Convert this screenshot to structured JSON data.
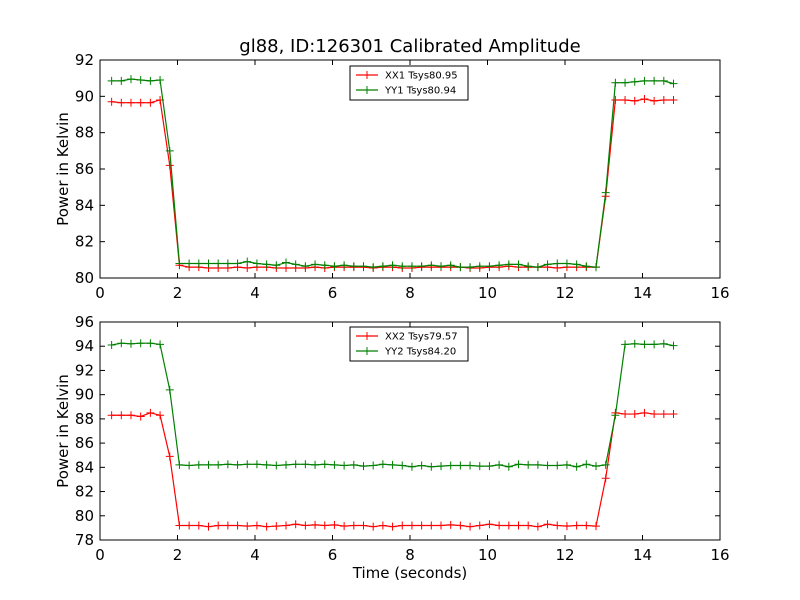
{
  "chart_data": [
    {
      "type": "line",
      "title": "gl88, ID:126301 Calibrated Amplitude",
      "xlabel": "",
      "ylabel": "Power in Kelvin",
      "xlim": [
        0,
        16
      ],
      "ylim": [
        80,
        92
      ],
      "xticks": [
        0,
        2,
        4,
        6,
        8,
        10,
        12,
        14,
        16
      ],
      "yticks": [
        80,
        82,
        84,
        86,
        88,
        90,
        92
      ],
      "legend_position": "top-center",
      "x": [
        0.3,
        0.55,
        0.8,
        1.05,
        1.3,
        1.55,
        1.8,
        2.05,
        2.3,
        2.55,
        2.8,
        3.05,
        3.3,
        3.55,
        3.8,
        4.05,
        4.3,
        4.55,
        4.8,
        5.05,
        5.3,
        5.55,
        5.8,
        6.05,
        6.3,
        6.55,
        6.8,
        7.05,
        7.3,
        7.55,
        7.8,
        8.05,
        8.3,
        8.55,
        8.8,
        9.05,
        9.3,
        9.55,
        9.8,
        10.05,
        10.3,
        10.55,
        10.8,
        11.05,
        11.3,
        11.55,
        11.8,
        12.05,
        12.3,
        12.55,
        12.8,
        13.05,
        13.3,
        13.55,
        13.8,
        14.05,
        14.3,
        14.55,
        14.8
      ],
      "series": [
        {
          "name": "XX1 Tsys80.95",
          "color": "#ff0000",
          "values": [
            89.7,
            89.65,
            89.65,
            89.65,
            89.65,
            89.8,
            86.2,
            80.7,
            80.6,
            80.6,
            80.55,
            80.55,
            80.55,
            80.6,
            80.55,
            80.6,
            80.6,
            80.55,
            80.55,
            80.55,
            80.55,
            80.6,
            80.55,
            80.6,
            80.6,
            80.6,
            80.6,
            80.55,
            80.6,
            80.6,
            80.55,
            80.55,
            80.6,
            80.6,
            80.6,
            80.6,
            80.6,
            80.55,
            80.55,
            80.6,
            80.6,
            80.65,
            80.6,
            80.6,
            80.6,
            80.6,
            80.55,
            80.6,
            80.6,
            80.6,
            80.6,
            84.5,
            89.8,
            89.8,
            89.75,
            89.85,
            89.75,
            89.8,
            89.8
          ]
        },
        {
          "name": "YY1 Tsys80.94",
          "color": "#008000",
          "values": [
            90.85,
            90.85,
            90.95,
            90.9,
            90.85,
            90.9,
            87.0,
            80.8,
            80.8,
            80.8,
            80.8,
            80.8,
            80.8,
            80.8,
            80.9,
            80.8,
            80.75,
            80.7,
            80.85,
            80.75,
            80.65,
            80.75,
            80.7,
            80.65,
            80.7,
            80.65,
            80.65,
            80.6,
            80.65,
            80.7,
            80.65,
            80.65,
            80.65,
            80.7,
            80.65,
            80.7,
            80.6,
            80.6,
            80.65,
            80.65,
            80.7,
            80.75,
            80.75,
            80.65,
            80.6,
            80.75,
            80.8,
            80.8,
            80.75,
            80.65,
            80.6,
            84.7,
            90.75,
            90.75,
            90.8,
            90.85,
            90.85,
            90.85,
            90.7
          ]
        }
      ]
    },
    {
      "type": "line",
      "title": "",
      "xlabel": "Time (seconds)",
      "ylabel": "Power in Kelvin",
      "xlim": [
        0,
        16
      ],
      "ylim": [
        78,
        96
      ],
      "xticks": [
        0,
        2,
        4,
        6,
        8,
        10,
        12,
        14,
        16
      ],
      "yticks": [
        78,
        80,
        82,
        84,
        86,
        88,
        90,
        92,
        94,
        96
      ],
      "legend_position": "top-center",
      "x": [
        0.3,
        0.55,
        0.8,
        1.05,
        1.3,
        1.55,
        1.8,
        2.05,
        2.3,
        2.55,
        2.8,
        3.05,
        3.3,
        3.55,
        3.8,
        4.05,
        4.3,
        4.55,
        4.8,
        5.05,
        5.3,
        5.55,
        5.8,
        6.05,
        6.3,
        6.55,
        6.8,
        7.05,
        7.3,
        7.55,
        7.8,
        8.05,
        8.3,
        8.55,
        8.8,
        9.05,
        9.3,
        9.55,
        9.8,
        10.05,
        10.3,
        10.55,
        10.8,
        11.05,
        11.3,
        11.55,
        11.8,
        12.05,
        12.3,
        12.55,
        12.8,
        13.05,
        13.3,
        13.55,
        13.8,
        14.05,
        14.3,
        14.55,
        14.8
      ],
      "series": [
        {
          "name": "XX2 Tsys79.57",
          "color": "#ff0000",
          "values": [
            88.3,
            88.3,
            88.3,
            88.2,
            88.5,
            88.3,
            84.9,
            79.2,
            79.2,
            79.2,
            79.1,
            79.2,
            79.2,
            79.2,
            79.15,
            79.2,
            79.1,
            79.15,
            79.2,
            79.3,
            79.2,
            79.25,
            79.2,
            79.25,
            79.15,
            79.2,
            79.2,
            79.1,
            79.2,
            79.1,
            79.2,
            79.2,
            79.2,
            79.2,
            79.2,
            79.25,
            79.2,
            79.1,
            79.2,
            79.3,
            79.2,
            79.2,
            79.2,
            79.2,
            79.1,
            79.3,
            79.2,
            79.15,
            79.2,
            79.2,
            79.15,
            83.1,
            88.5,
            88.4,
            88.4,
            88.5,
            88.4,
            88.4,
            88.4
          ]
        },
        {
          "name": "YY2 Tsys84.20",
          "color": "#008000",
          "values": [
            94.1,
            94.25,
            94.2,
            94.25,
            94.25,
            94.15,
            90.4,
            84.2,
            84.15,
            84.2,
            84.2,
            84.2,
            84.25,
            84.2,
            84.25,
            84.25,
            84.2,
            84.15,
            84.2,
            84.25,
            84.25,
            84.2,
            84.25,
            84.2,
            84.15,
            84.2,
            84.1,
            84.15,
            84.25,
            84.2,
            84.15,
            84.05,
            84.15,
            84.05,
            84.1,
            84.15,
            84.15,
            84.15,
            84.1,
            84.1,
            84.2,
            84.05,
            84.25,
            84.2,
            84.2,
            84.15,
            84.15,
            84.2,
            84.05,
            84.25,
            84.1,
            84.2,
            88.3,
            94.15,
            94.2,
            94.15,
            94.15,
            94.2,
            94.05
          ]
        }
      ]
    }
  ]
}
